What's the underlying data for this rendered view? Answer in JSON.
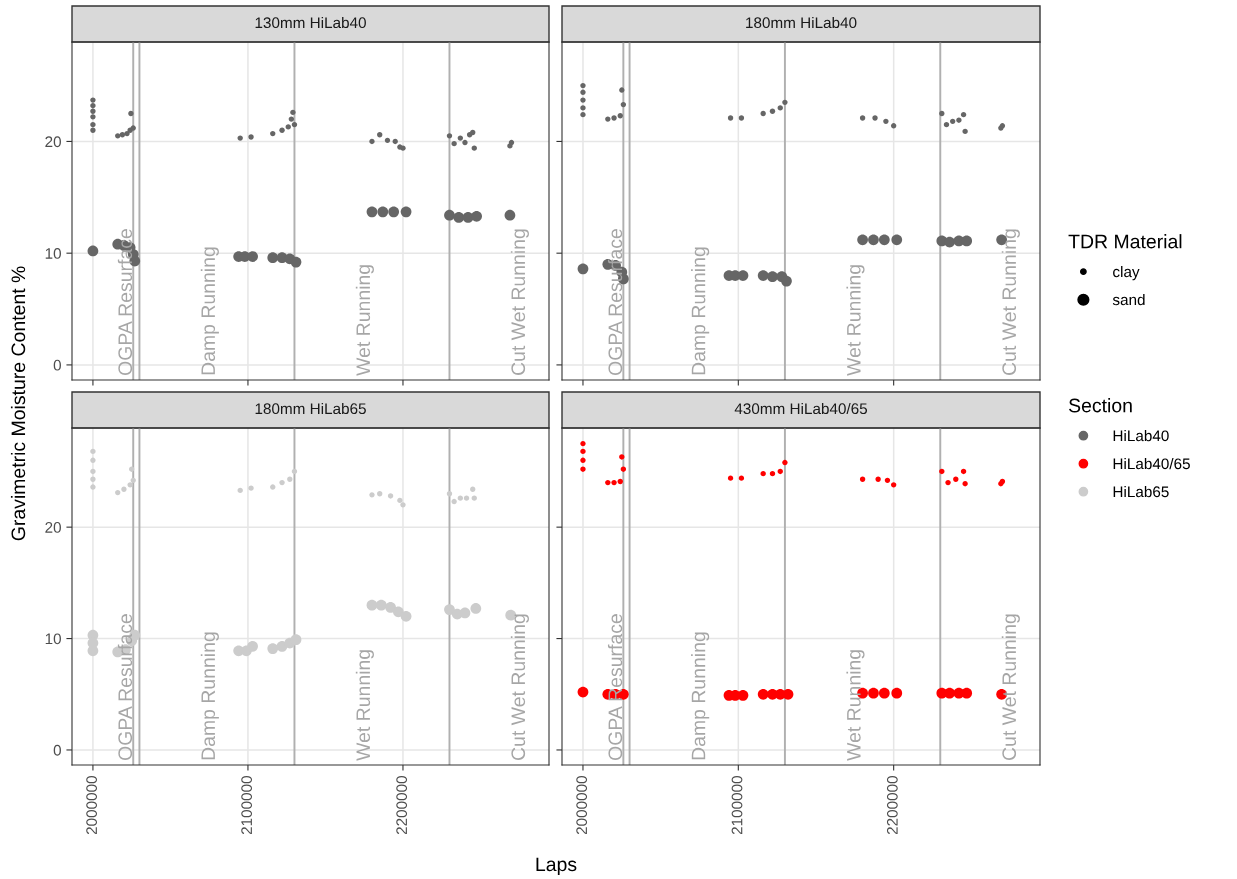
{
  "chart_data": [
    {
      "type": "scatter",
      "title": "130mm HiLab40",
      "xlim": [
        1986500,
        2294200
      ],
      "ylim": [
        -1.35,
        28.9
      ],
      "xticks": [
        2000000,
        2100000,
        2200000
      ],
      "yticks": [
        0,
        10,
        20
      ],
      "grid": true,
      "tick_labels": "y",
      "marker": "circle",
      "legend": "right",
      "legend_title": "TDR Material",
      "ref_lines": [
        {
          "axis": "x",
          "value": 2026000,
          "color": "#b0b0b0"
        },
        {
          "axis": "x",
          "value": 2030000,
          "color": "#b0b0b0"
        },
        {
          "axis": "x",
          "value": 2130000,
          "color": "#b0b0b0"
        },
        {
          "axis": "x",
          "value": 2230000,
          "color": "#b0b0b0"
        }
      ],
      "annotations": [
        "OGPA Resurface",
        "Damp Running",
        "Wet Running",
        "Cut Wet Running"
      ],
      "series": [
        {
          "name": "clay",
          "color": "#666666",
          "x": [
            2000000,
            2000000,
            2000000,
            2000000,
            2000000,
            2000000,
            2016000,
            2019000,
            2022000,
            2024000,
            2024500,
            2026000,
            2095000,
            2102000,
            2116000,
            2122000,
            2126000,
            2128000,
            2129000,
            2130000,
            2180000,
            2185000,
            2190000,
            2195000,
            2198000,
            2200000,
            2230000,
            2233000,
            2237000,
            2240000,
            2243000,
            2245000,
            2246000,
            2269000,
            2270000
          ],
          "values": [
            23.7,
            23.2,
            22.7,
            22.2,
            21.5,
            21.0,
            20.5,
            20.6,
            20.7,
            21.0,
            22.5,
            21.2,
            20.3,
            20.4,
            20.7,
            21.0,
            21.3,
            22.0,
            22.6,
            21.5,
            20.0,
            20.6,
            20.1,
            20.0,
            19.5,
            19.4,
            20.5,
            19.8,
            20.3,
            19.9,
            20.6,
            20.8,
            19.4,
            19.6,
            19.9
          ],
          "sizes": [
            0.25,
            0.25,
            0.25,
            0.25,
            0.25,
            0.25,
            0.25,
            0.25,
            0.25,
            0.25,
            0.25,
            0.25,
            0.25,
            0.25,
            0.25,
            0.25,
            0.25,
            0.25,
            0.25,
            0.25,
            0.25,
            0.25,
            0.25,
            0.25,
            0.25,
            0.25,
            0.25,
            0.25,
            0.25,
            0.25,
            0.25,
            0.25,
            0.25,
            0.25,
            0.25
          ]
        },
        {
          "name": "sand",
          "color": "#666666",
          "x": [
            2000000,
            2016000,
            2020000,
            2024000,
            2026000,
            2027000,
            2094000,
            2098000,
            2103000,
            2116000,
            2122000,
            2127000,
            2131000,
            2180000,
            2187000,
            2194000,
            2202000,
            2230000,
            2236000,
            2242000,
            2247500,
            2269000
          ],
          "values": [
            10.2,
            10.8,
            10.7,
            10.5,
            9.9,
            9.3,
            9.7,
            9.7,
            9.7,
            9.6,
            9.6,
            9.5,
            9.2,
            13.7,
            13.7,
            13.7,
            13.7,
            13.4,
            13.2,
            13.2,
            13.3,
            13.4
          ],
          "sizes": [
            1,
            1,
            1,
            1,
            1,
            1,
            1,
            1,
            1,
            1,
            1,
            1,
            1,
            1,
            1,
            1,
            1,
            1,
            1,
            1,
            1,
            1
          ]
        }
      ]
    },
    {
      "type": "scatter",
      "title": "180mm HiLab40",
      "xlim": [
        1986500,
        2294200
      ],
      "ylim": [
        -1.35,
        28.9
      ],
      "xticks": [
        2000000,
        2100000,
        2200000
      ],
      "yticks": [
        0,
        10,
        20
      ],
      "grid": true,
      "tick_labels": false,
      "marker": "circle",
      "ref_lines": [
        {
          "axis": "x",
          "value": 2026000,
          "color": "#b0b0b0"
        },
        {
          "axis": "x",
          "value": 2030000,
          "color": "#b0b0b0"
        },
        {
          "axis": "x",
          "value": 2130000,
          "color": "#b0b0b0"
        },
        {
          "axis": "x",
          "value": 2230000,
          "color": "#b0b0b0"
        }
      ],
      "annotations": [
        "OGPA Resurface",
        "Damp Running",
        "Wet Running",
        "Cut Wet Running"
      ],
      "series": [
        {
          "color": "#666666",
          "x": [
            2000000,
            2000000,
            2000000,
            2000000,
            2000000,
            2016000,
            2020000,
            2024000,
            2025000,
            2026000,
            2095000,
            2102000,
            2116000,
            2122000,
            2127000,
            2130000,
            2180000,
            2188000,
            2195000,
            2200000,
            2231000,
            2234000,
            2238000,
            2242000,
            2245000,
            2246000,
            2269000,
            2270000
          ],
          "values": [
            25.0,
            24.4,
            23.7,
            23.0,
            22.4,
            22.0,
            22.1,
            22.3,
            24.6,
            23.3,
            22.1,
            22.1,
            22.5,
            22.7,
            23.0,
            23.5,
            22.1,
            22.1,
            21.8,
            21.4,
            22.5,
            21.5,
            21.8,
            21.9,
            22.4,
            20.9,
            21.2,
            21.4
          ],
          "sizes": [
            0.25,
            0.25,
            0.25,
            0.25,
            0.25,
            0.25,
            0.25,
            0.25,
            0.25,
            0.25,
            0.25,
            0.25,
            0.25,
            0.25,
            0.25,
            0.25,
            0.25,
            0.25,
            0.25,
            0.25,
            0.25,
            0.25,
            0.25,
            0.25,
            0.25,
            0.25,
            0.25,
            0.25
          ]
        },
        {
          "color": "#666666",
          "x": [
            2000000,
            2016000,
            2021000,
            2025000,
            2026000,
            2094000,
            2098000,
            2103000,
            2116000,
            2122000,
            2128000,
            2131000,
            2180000,
            2187000,
            2194000,
            2202000,
            2231000,
            2236000,
            2242000,
            2247000,
            2269500
          ],
          "values": [
            8.6,
            9.0,
            8.9,
            8.3,
            7.7,
            8.0,
            8.0,
            8.0,
            8.0,
            7.9,
            7.9,
            7.5,
            11.2,
            11.2,
            11.2,
            11.2,
            11.1,
            11.0,
            11.1,
            11.1,
            11.2
          ],
          "sizes": [
            1,
            1,
            1,
            1,
            1,
            1,
            1,
            1,
            1,
            1,
            1,
            1,
            1,
            1,
            1,
            1,
            1,
            1,
            1,
            1,
            1
          ]
        }
      ]
    },
    {
      "type": "scatter",
      "title": "180mm HiLab65",
      "xlim": [
        1986500,
        2294200
      ],
      "ylim": [
        -1.35,
        28.9
      ],
      "xticks": [
        2000000,
        2100000,
        2200000
      ],
      "yticks": [
        0,
        10,
        20
      ],
      "grid": true,
      "marker": "circle",
      "xlabel": "Laps",
      "ylabel": "Gravimetric Moisture Content %",
      "ref_lines": [
        {
          "axis": "x",
          "value": 2026000,
          "color": "#b0b0b0"
        },
        {
          "axis": "x",
          "value": 2030000,
          "color": "#b0b0b0"
        },
        {
          "axis": "x",
          "value": 2130000,
          "color": "#b0b0b0"
        },
        {
          "axis": "x",
          "value": 2230000,
          "color": "#b0b0b0"
        }
      ],
      "annotations": [
        "OGPA Resurface",
        "Damp Running",
        "Wet Running",
        "Cut Wet Running"
      ],
      "series": [
        {
          "color": "#cccccc",
          "x": [
            2000000,
            2000000,
            2000000,
            2000000,
            2000000,
            2016000,
            2020000,
            2024000,
            2025000,
            2026000,
            2095000,
            2102000,
            2116000,
            2122000,
            2127000,
            2130000,
            2180000,
            2185000,
            2192000,
            2198000,
            2200000,
            2230000,
            2233000,
            2237000,
            2241000,
            2245000,
            2246000
          ],
          "values": [
            26.8,
            26.0,
            25.0,
            24.3,
            23.6,
            23.1,
            23.4,
            23.8,
            25.2,
            24.2,
            23.3,
            23.5,
            23.6,
            24.0,
            24.3,
            25.0,
            22.9,
            23.0,
            22.8,
            22.4,
            22.0,
            23.0,
            22.3,
            22.6,
            22.6,
            23.4,
            22.6
          ],
          "sizes": [
            0.25,
            0.25,
            0.25,
            0.25,
            0.25,
            0.25,
            0.25,
            0.25,
            0.25,
            0.25,
            0.25,
            0.25,
            0.25,
            0.25,
            0.25,
            0.25,
            0.25,
            0.25,
            0.25,
            0.25,
            0.25,
            0.25,
            0.25,
            0.25,
            0.25,
            0.25,
            0.25
          ]
        },
        {
          "color": "#cccccc",
          "x": [
            2000000,
            2000000,
            2000000,
            2016000,
            2021000,
            2025000,
            2027000,
            2094000,
            2099000,
            2103000,
            2116000,
            2122000,
            2127000,
            2131000,
            2180000,
            2186000,
            2192000,
            2197000,
            2202000,
            2230000,
            2235000,
            2240000,
            2247000,
            2269500
          ],
          "values": [
            10.3,
            9.6,
            8.9,
            8.8,
            9.0,
            9.8,
            10.3,
            8.9,
            8.9,
            9.3,
            9.1,
            9.3,
            9.6,
            9.9,
            13.0,
            13.0,
            12.8,
            12.4,
            12.0,
            12.6,
            12.2,
            12.3,
            12.7,
            12.1
          ],
          "sizes": [
            1,
            1,
            1,
            1,
            1,
            1,
            1,
            1,
            1,
            1,
            1,
            1,
            1,
            1,
            1,
            1,
            1,
            1,
            1,
            1,
            1,
            1,
            1,
            1
          ]
        }
      ]
    },
    {
      "type": "scatter",
      "title": "430mm HiLab40/65",
      "xlim": [
        1986500,
        2294200
      ],
      "ylim": [
        -1.35,
        28.9
      ],
      "xticks": [
        2000000,
        2100000,
        2200000
      ],
      "yticks": [
        0,
        10,
        20
      ],
      "grid": true,
      "tick_labels": "x",
      "marker": "circle",
      "ref_lines": [
        {
          "axis": "x",
          "value": 2026000,
          "color": "#b0b0b0"
        },
        {
          "axis": "x",
          "value": 2030000,
          "color": "#b0b0b0"
        },
        {
          "axis": "x",
          "value": 2130000,
          "color": "#b0b0b0"
        },
        {
          "axis": "x",
          "value": 2230000,
          "color": "#b0b0b0"
        }
      ],
      "annotations": [
        "OGPA Resurface",
        "Damp Running",
        "Wet Running",
        "Cut Wet Running"
      ],
      "series": [
        {
          "color": "#ff0000",
          "x": [
            2000000,
            2000000,
            2000000,
            2000000,
            2016000,
            2020000,
            2024000,
            2025000,
            2026000,
            2095000,
            2102000,
            2116000,
            2122000,
            2127000,
            2130000,
            2180000,
            2190000,
            2196000,
            2200000,
            2231000,
            2235000,
            2240000,
            2245000,
            2246000,
            2269000,
            2270000
          ],
          "values": [
            27.5,
            26.8,
            26.0,
            25.2,
            24.0,
            24.0,
            24.1,
            26.3,
            25.2,
            24.4,
            24.4,
            24.8,
            24.8,
            25.0,
            25.8,
            24.3,
            24.3,
            24.2,
            23.8,
            25.0,
            24.0,
            24.3,
            25.0,
            23.9,
            23.9,
            24.1
          ],
          "sizes": [
            0.25,
            0.25,
            0.25,
            0.25,
            0.25,
            0.25,
            0.25,
            0.25,
            0.25,
            0.25,
            0.25,
            0.25,
            0.25,
            0.25,
            0.25,
            0.25,
            0.25,
            0.25,
            0.25,
            0.25,
            0.25,
            0.25,
            0.25,
            0.25,
            0.25,
            0.25
          ]
        },
        {
          "color": "#ff0000",
          "x": [
            2000000,
            2016000,
            2021000,
            2026000,
            2094000,
            2098000,
            2103000,
            2116000,
            2122000,
            2127000,
            2132000,
            2180000,
            2187000,
            2194000,
            2202000,
            2231000,
            2236000,
            2242000,
            2247000,
            2269500
          ],
          "values": [
            5.2,
            5.0,
            5.0,
            5.0,
            4.9,
            4.9,
            4.9,
            5.0,
            5.0,
            5.0,
            5.0,
            5.1,
            5.1,
            5.1,
            5.1,
            5.1,
            5.1,
            5.1,
            5.1,
            5.0
          ],
          "sizes": [
            1,
            1,
            1,
            1,
            1,
            1,
            1,
            1,
            1,
            1,
            1,
            1,
            1,
            1,
            1,
            1,
            1,
            1,
            1,
            1
          ]
        }
      ]
    },
    {
      "type": "other",
      "legend": "right",
      "legend_title": "Section",
      "series": [
        {
          "name": "HiLab40",
          "color": "#666666"
        },
        {
          "name": "HiLab40/65",
          "color": "#ff0000"
        },
        {
          "name": "HiLab65",
          "color": "#cccccc"
        }
      ]
    }
  ]
}
